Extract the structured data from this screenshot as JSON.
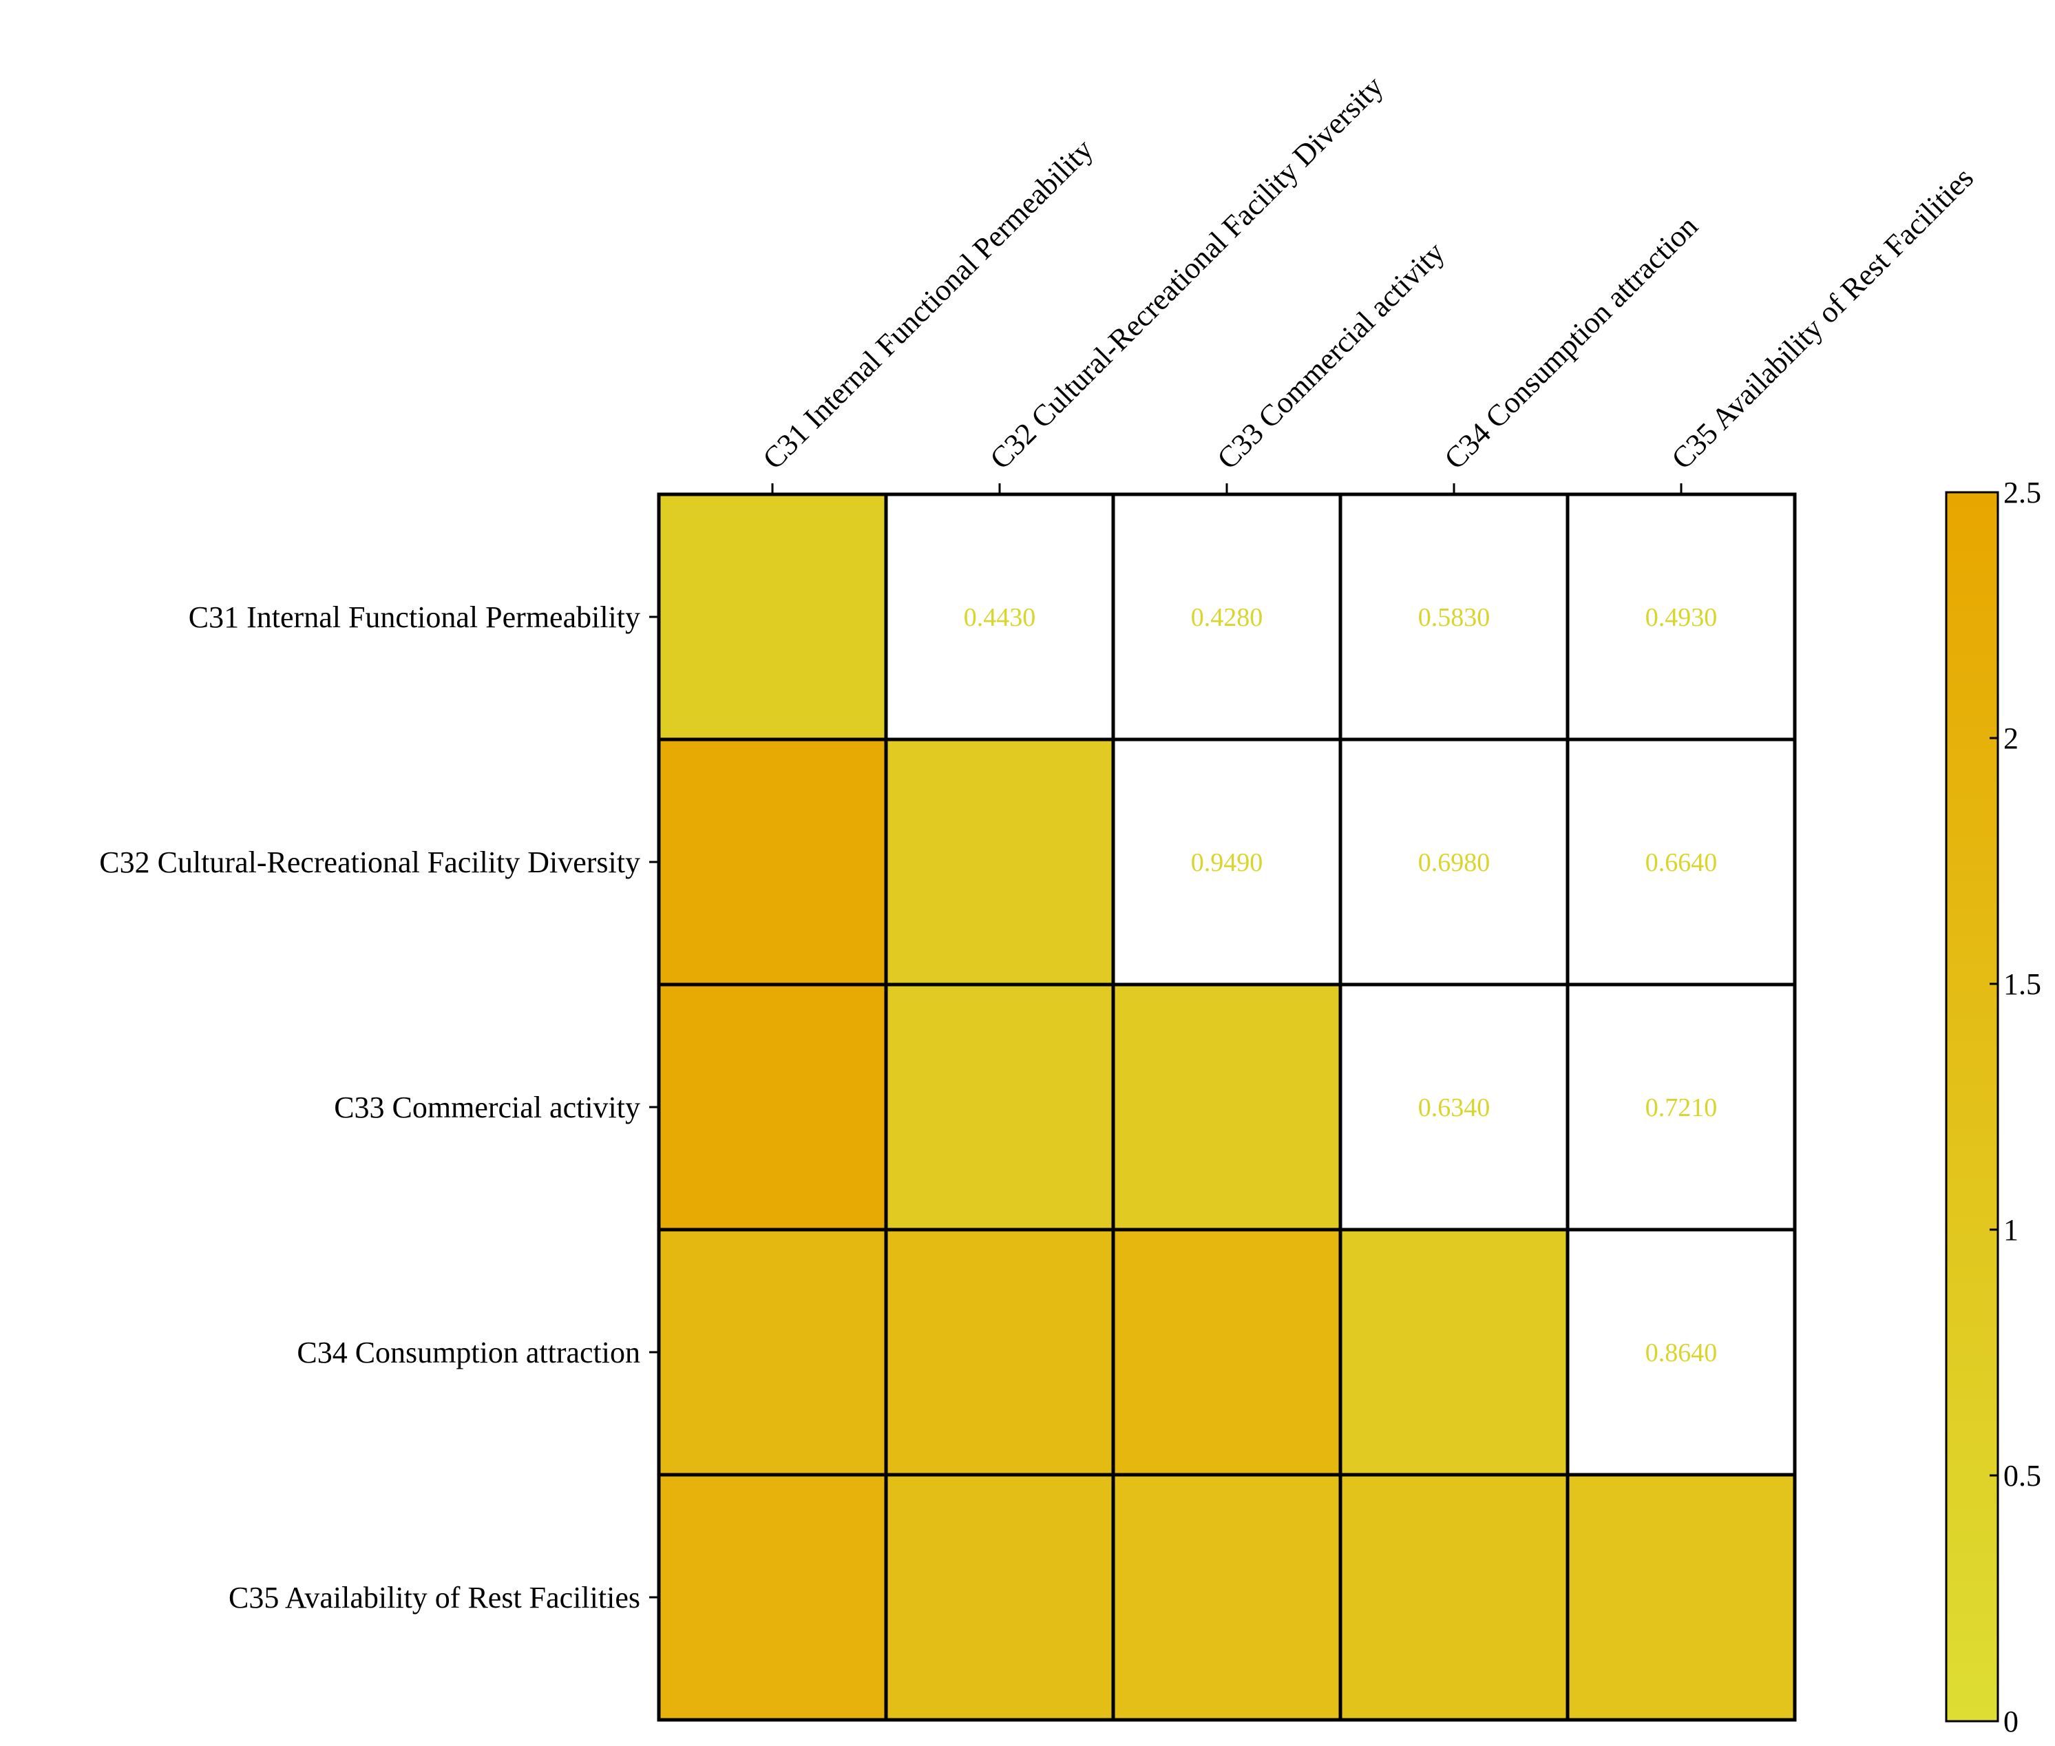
{
  "chart_data": {
    "type": "heatmap",
    "rows": [
      "C31 Internal Functional Permeability",
      "C32 Cultural-Recreational Facility Diversity",
      "C33 Commercial activity",
      "C34 Consumption attraction",
      "C35 Availability of Rest Facilities"
    ],
    "columns": [
      "C31 Internal Functional Permeability",
      "C32 Cultural-Recreational Facility Diversity",
      "C33 Commercial activity",
      "C34 Consumption attraction",
      "C35 Availability of Rest Facilities"
    ],
    "upper_triangle_values": [
      [
        null,
        "0.4430",
        "0.4280",
        "0.5830",
        "0.4930"
      ],
      [
        null,
        null,
        "0.9490",
        "0.6980",
        "0.6640"
      ],
      [
        null,
        null,
        null,
        "0.6340",
        "0.7210"
      ],
      [
        null,
        null,
        null,
        null,
        "0.8640"
      ],
      [
        null,
        null,
        null,
        null,
        null
      ]
    ],
    "color_values": [
      [
        0.75,
        null,
        null,
        null,
        null
      ],
      [
        2.3,
        0.8,
        null,
        null,
        null
      ],
      [
        2.35,
        0.8,
        0.8,
        null,
        null
      ],
      [
        1.7,
        1.55,
        1.75,
        0.85,
        null
      ],
      [
        1.95,
        1.4,
        1.35,
        1.2,
        1.15
      ]
    ],
    "colorbar": {
      "range": [
        0,
        2.5
      ],
      "ticks": [
        "0",
        "0.5",
        "1",
        "1.5",
        "2",
        "2.5"
      ],
      "tick_values": [
        0,
        0.5,
        1,
        1.5,
        2,
        2.5
      ],
      "color_low": "#dddd33",
      "color_high": "#e8a600"
    },
    "text_color": "#d8d62c",
    "empty_cell_color": "#ffffff",
    "grid_color": "#000000"
  }
}
